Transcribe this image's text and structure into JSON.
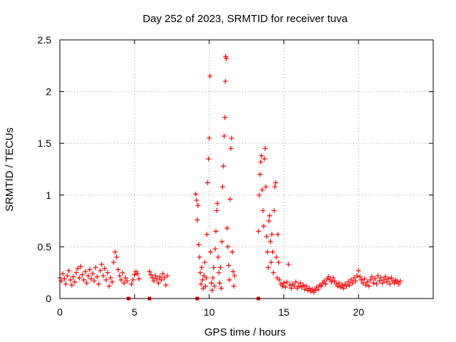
{
  "chart_data": {
    "type": "scatter",
    "title": "Day 252 of 2023, SRMTID for receiver tuva",
    "xlabel": "GPS time / hours",
    "ylabel": "SRMTID / TECUs",
    "xlim": [
      0,
      25
    ],
    "ylim": [
      0,
      2.5
    ],
    "xticks": [
      0,
      5,
      10,
      15,
      20
    ],
    "xtick_labels": [
      "0",
      "5",
      "10",
      "15",
      "20"
    ],
    "yticks": [
      0,
      0.5,
      1,
      1.5,
      2,
      2.5
    ],
    "ytick_labels": [
      "0",
      "0.5",
      "1",
      "1.5",
      "2",
      "2.5"
    ],
    "grid": true,
    "marker": "plus",
    "color": "#ff0000",
    "baseline_markers_x": [
      4.6,
      6.0,
      9.2,
      13.3
    ],
    "series": [
      {
        "name": "SRMTID",
        "points": [
          [
            0.0,
            0.2
          ],
          [
            0.1,
            0.17
          ],
          [
            0.2,
            0.24
          ],
          [
            0.3,
            0.19
          ],
          [
            0.4,
            0.14
          ],
          [
            0.5,
            0.22
          ],
          [
            0.6,
            0.27
          ],
          [
            0.7,
            0.18
          ],
          [
            0.8,
            0.13
          ],
          [
            0.9,
            0.21
          ],
          [
            1.0,
            0.16
          ],
          [
            1.1,
            0.25
          ],
          [
            1.2,
            0.29
          ],
          [
            1.3,
            0.2
          ],
          [
            1.4,
            0.31
          ],
          [
            1.5,
            0.23
          ],
          [
            1.6,
            0.18
          ],
          [
            1.7,
            0.26
          ],
          [
            1.8,
            0.15
          ],
          [
            1.9,
            0.22
          ],
          [
            2.0,
            0.28
          ],
          [
            2.1,
            0.19
          ],
          [
            2.2,
            0.24
          ],
          [
            2.3,
            0.17
          ],
          [
            2.4,
            0.3
          ],
          [
            2.5,
            0.21
          ],
          [
            2.6,
            0.14
          ],
          [
            2.7,
            0.27
          ],
          [
            2.8,
            0.33
          ],
          [
            2.9,
            0.22
          ],
          [
            3.0,
            0.29
          ],
          [
            3.1,
            0.18
          ],
          [
            3.2,
            0.25
          ],
          [
            3.3,
            0.12
          ],
          [
            3.4,
            0.2
          ],
          [
            3.5,
            0.16
          ],
          [
            3.6,
            0.35
          ],
          [
            3.7,
            0.45
          ],
          [
            3.8,
            0.4
          ],
          [
            3.9,
            0.28
          ],
          [
            4.0,
            0.22
          ],
          [
            4.1,
            0.18
          ],
          [
            4.2,
            0.25
          ],
          [
            4.3,
            0.15
          ],
          [
            4.4,
            0.2
          ],
          [
            4.5,
            0.17
          ],
          [
            4.8,
            0.14
          ],
          [
            4.9,
            0.18
          ],
          [
            5.0,
            0.23
          ],
          [
            5.1,
            0.26
          ],
          [
            5.2,
            0.24
          ],
          [
            5.3,
            0.19
          ],
          [
            6.0,
            0.26
          ],
          [
            6.1,
            0.23
          ],
          [
            6.2,
            0.2
          ],
          [
            6.3,
            0.17
          ],
          [
            6.4,
            0.22
          ],
          [
            6.5,
            0.19
          ],
          [
            6.6,
            0.15
          ],
          [
            6.7,
            0.21
          ],
          [
            6.8,
            0.18
          ],
          [
            6.9,
            0.24
          ],
          [
            7.0,
            0.2
          ],
          [
            7.1,
            0.13
          ],
          [
            7.2,
            0.22
          ],
          [
            9.1,
            1.01
          ],
          [
            9.15,
            0.95
          ],
          [
            9.2,
            0.76
          ],
          [
            9.25,
            0.9
          ],
          [
            9.3,
            0.52
          ],
          [
            9.35,
            0.4
          ],
          [
            9.4,
            0.25
          ],
          [
            9.45,
            0.14
          ],
          [
            9.5,
            0.3
          ],
          [
            9.55,
            0.18
          ],
          [
            9.6,
            0.1
          ],
          [
            9.65,
            0.22
          ],
          [
            9.7,
            0.35
          ],
          [
            9.75,
            0.12
          ],
          [
            9.8,
            0.2
          ],
          [
            9.85,
            0.62
          ],
          [
            9.9,
            1.12
          ],
          [
            9.95,
            1.35
          ],
          [
            10.0,
            1.55
          ],
          [
            10.05,
            2.15
          ],
          [
            10.1,
            0.45
          ],
          [
            10.15,
            0.15
          ],
          [
            10.2,
            0.08
          ],
          [
            10.25,
            0.2
          ],
          [
            10.3,
            0.3
          ],
          [
            10.35,
            0.12
          ],
          [
            10.4,
            0.48
          ],
          [
            10.45,
            0.65
          ],
          [
            10.5,
            0.85
          ],
          [
            10.55,
            0.92
          ],
          [
            10.6,
            0.4
          ],
          [
            10.65,
            0.25
          ],
          [
            10.7,
            0.15
          ],
          [
            10.75,
            0.3
          ],
          [
            10.8,
            0.1
          ],
          [
            10.85,
            0.55
          ],
          [
            10.9,
            1.08
          ],
          [
            10.95,
            1.28
          ],
          [
            11.0,
            1.57
          ],
          [
            11.05,
            1.75
          ],
          [
            11.08,
            2.1
          ],
          [
            11.1,
            2.34
          ],
          [
            11.15,
            2.32
          ],
          [
            11.2,
            0.68
          ],
          [
            11.25,
            0.5
          ],
          [
            11.3,
            0.32
          ],
          [
            11.35,
            0.18
          ],
          [
            11.4,
            0.96
          ],
          [
            11.45,
            1.45
          ],
          [
            11.5,
            1.55
          ],
          [
            11.55,
            0.45
          ],
          [
            11.6,
            0.26
          ],
          [
            11.65,
            0.12
          ],
          [
            11.7,
            0.22
          ],
          [
            13.3,
            0.65
          ],
          [
            13.35,
            1.0
          ],
          [
            13.4,
            1.2
          ],
          [
            13.45,
            1.32
          ],
          [
            13.5,
            1.38
          ],
          [
            13.55,
            1.05
          ],
          [
            13.6,
            0.85
          ],
          [
            13.65,
            0.7
          ],
          [
            13.7,
            1.35
          ],
          [
            13.75,
            1.45
          ],
          [
            13.8,
            1.08
          ],
          [
            13.85,
            0.6
          ],
          [
            13.9,
            0.45
          ],
          [
            13.95,
            0.3
          ],
          [
            14.0,
            0.75
          ],
          [
            14.05,
            0.8
          ],
          [
            14.1,
            0.55
          ],
          [
            14.15,
            0.35
          ],
          [
            14.2,
            0.62
          ],
          [
            14.25,
            0.45
          ],
          [
            14.3,
            0.25
          ],
          [
            14.35,
            0.85
          ],
          [
            14.4,
            1.08
          ],
          [
            14.45,
            1.12
          ],
          [
            14.5,
            0.4
          ],
          [
            14.55,
            0.2
          ],
          [
            14.6,
            0.62
          ],
          [
            14.65,
            0.35
          ],
          [
            14.7,
            0.18
          ],
          [
            14.8,
            0.14
          ],
          [
            14.9,
            0.12
          ],
          [
            15.0,
            0.15
          ],
          [
            15.1,
            0.11
          ],
          [
            15.2,
            0.16
          ],
          [
            15.3,
            0.33
          ],
          [
            15.4,
            0.13
          ],
          [
            15.5,
            0.1
          ],
          [
            15.6,
            0.14
          ],
          [
            15.7,
            0.12
          ],
          [
            15.8,
            0.16
          ],
          [
            15.9,
            0.1
          ],
          [
            16.0,
            0.12
          ],
          [
            16.1,
            0.15
          ],
          [
            16.2,
            0.11
          ],
          [
            16.3,
            0.13
          ],
          [
            16.4,
            0.09
          ],
          [
            16.5,
            0.12
          ],
          [
            16.6,
            0.08
          ],
          [
            16.7,
            0.1
          ],
          [
            16.8,
            0.07
          ],
          [
            16.9,
            0.09
          ],
          [
            17.0,
            0.06
          ],
          [
            17.1,
            0.08
          ],
          [
            17.2,
            0.11
          ],
          [
            17.3,
            0.09
          ],
          [
            17.4,
            0.13
          ],
          [
            17.5,
            0.12
          ],
          [
            17.6,
            0.15
          ],
          [
            17.7,
            0.17
          ],
          [
            17.8,
            0.14
          ],
          [
            17.9,
            0.19
          ],
          [
            18.0,
            0.21
          ],
          [
            18.1,
            0.18
          ],
          [
            18.2,
            0.16
          ],
          [
            18.3,
            0.2
          ],
          [
            18.4,
            0.17
          ],
          [
            18.5,
            0.14
          ],
          [
            18.6,
            0.12
          ],
          [
            18.7,
            0.15
          ],
          [
            18.8,
            0.11
          ],
          [
            18.9,
            0.13
          ],
          [
            19.0,
            0.1
          ],
          [
            19.1,
            0.14
          ],
          [
            19.2,
            0.12
          ],
          [
            19.3,
            0.16
          ],
          [
            19.4,
            0.13
          ],
          [
            19.5,
            0.18
          ],
          [
            19.6,
            0.15
          ],
          [
            19.7,
            0.2
          ],
          [
            19.8,
            0.17
          ],
          [
            19.9,
            0.22
          ],
          [
            20.0,
            0.27
          ],
          [
            20.1,
            0.21
          ],
          [
            20.2,
            0.18
          ],
          [
            20.3,
            0.15
          ],
          [
            20.4,
            0.19
          ],
          [
            20.5,
            0.13
          ],
          [
            20.6,
            0.16
          ],
          [
            20.7,
            0.12
          ],
          [
            20.8,
            0.18
          ],
          [
            20.9,
            0.21
          ],
          [
            21.0,
            0.15
          ],
          [
            21.1,
            0.19
          ],
          [
            21.2,
            0.14
          ],
          [
            21.3,
            0.22
          ],
          [
            21.4,
            0.17
          ],
          [
            21.5,
            0.2
          ],
          [
            21.6,
            0.15
          ],
          [
            21.7,
            0.18
          ],
          [
            21.8,
            0.21
          ],
          [
            21.9,
            0.16
          ],
          [
            22.0,
            0.19
          ],
          [
            22.1,
            0.14
          ],
          [
            22.2,
            0.2
          ],
          [
            22.3,
            0.17
          ],
          [
            22.4,
            0.15
          ],
          [
            22.5,
            0.18
          ],
          [
            22.6,
            0.16
          ],
          [
            22.7,
            0.14
          ],
          [
            22.8,
            0.17
          ]
        ]
      }
    ]
  }
}
